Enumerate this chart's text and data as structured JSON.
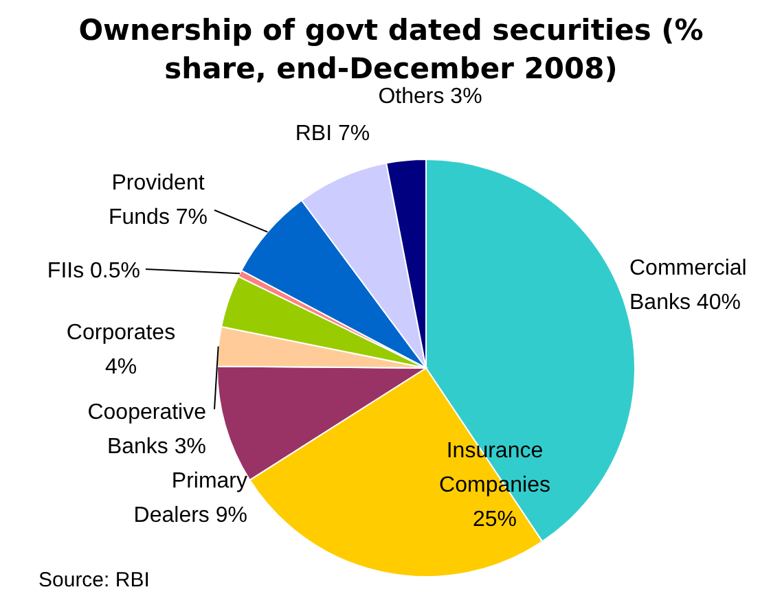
{
  "chart_data": {
    "type": "pie",
    "title": "Ownership of govt dated securities (% share, end-December 2008)",
    "categories": [
      "Commercial Banks",
      "Insurance Companies",
      "Primary Dealers",
      "Cooperative Banks",
      "Corporates",
      "FIIs",
      "Provident Funds",
      "RBI",
      "Others"
    ],
    "values": [
      40,
      25,
      9,
      3,
      4,
      0.5,
      7,
      7,
      3
    ],
    "value_labels": [
      "40%",
      "25%",
      "9%",
      "3%",
      "4%",
      "0.5%",
      "7%",
      "7%",
      "3%"
    ],
    "colors": [
      "#33cccc",
      "#ffcc00",
      "#993366",
      "#ffcc99",
      "#99cc00",
      "#ff8080",
      "#0066cc",
      "#ccccff",
      "#000080"
    ],
    "annotations": [
      "Source: RBI"
    ]
  }
}
